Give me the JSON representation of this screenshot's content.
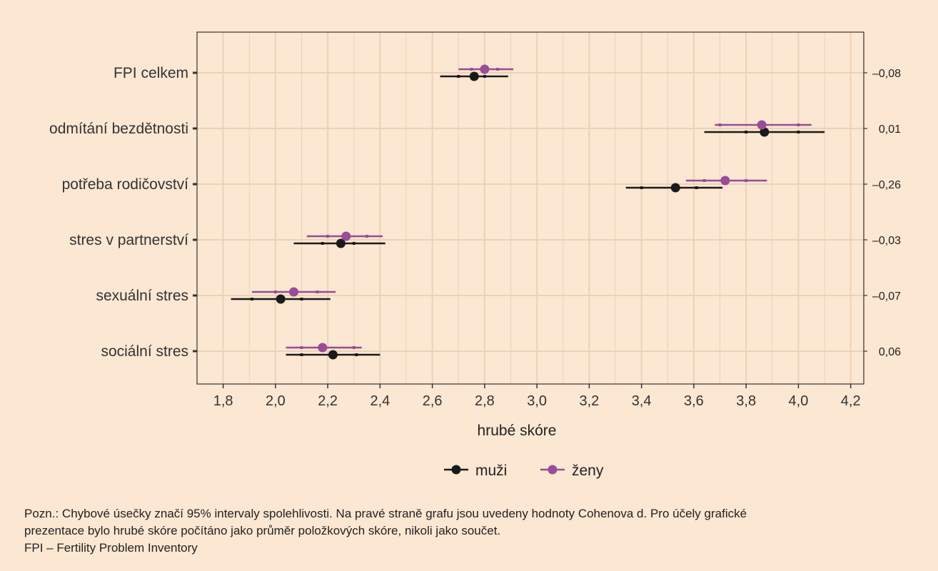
{
  "chart_data": {
    "type": "scatter",
    "subtype": "forest-plot-with-error-bars",
    "title": "",
    "xlabel": "hrubé skóre",
    "ylabel": "",
    "xlim": [
      1.7,
      4.25
    ],
    "x_ticks": [
      "1,8",
      "2,0",
      "2,2",
      "2,4",
      "2,6",
      "2,8",
      "3,0",
      "3,2",
      "3,4",
      "3,6",
      "3,8",
      "4,0",
      "4,2"
    ],
    "grid": true,
    "legend_position": "bottom",
    "categories": [
      "FPI celkem",
      "odmítání bezdětnosti",
      "potřeba rodičovství",
      "stres v partnerství",
      "sexuální stres",
      "sociální stres"
    ],
    "right_labels": [
      "–0,08",
      "0,01",
      "–0,26",
      "–0,03",
      "–0,07",
      "0,06"
    ],
    "series": [
      {
        "name": "muži",
        "color": "#1a1a1a",
        "mean": [
          2.76,
          3.87,
          3.53,
          2.25,
          2.02,
          2.22
        ],
        "ci_low": [
          2.63,
          3.64,
          3.34,
          2.07,
          1.83,
          2.04
        ],
        "ci_high": [
          2.89,
          4.1,
          3.71,
          2.42,
          2.21,
          2.4
        ],
        "inner_low": [
          2.7,
          3.8,
          3.4,
          2.18,
          1.91,
          2.1
        ],
        "inner_high": [
          2.8,
          4.0,
          3.61,
          2.3,
          2.1,
          2.31
        ]
      },
      {
        "name": "ženy",
        "color": "#984d96",
        "mean": [
          2.8,
          3.86,
          3.72,
          2.27,
          2.07,
          2.18
        ],
        "ci_low": [
          2.7,
          3.68,
          3.57,
          2.12,
          1.91,
          2.04
        ],
        "ci_high": [
          2.91,
          4.05,
          3.88,
          2.41,
          2.23,
          2.33
        ],
        "inner_low": [
          2.75,
          3.7,
          3.64,
          2.2,
          2.0,
          2.1
        ],
        "inner_high": [
          2.85,
          4.0,
          3.8,
          2.35,
          2.16,
          2.3
        ]
      }
    ]
  },
  "note": {
    "line1": "Pozn.: Chybové úsečky značí 95% intervaly spolehlivosti. Na pravé straně grafu jsou uvedeny hodnoty Cohenova d. Pro účely grafické",
    "line2": "prezentace bylo hrubé skóre počítáno jako průměr položkových skóre, nikoli jako součet.",
    "line3": "FPI – Fertility Problem Inventory"
  },
  "colors": {
    "background": "#fbe7d2",
    "panel": "#fbe7d2",
    "grid": "#ead2b8"
  }
}
